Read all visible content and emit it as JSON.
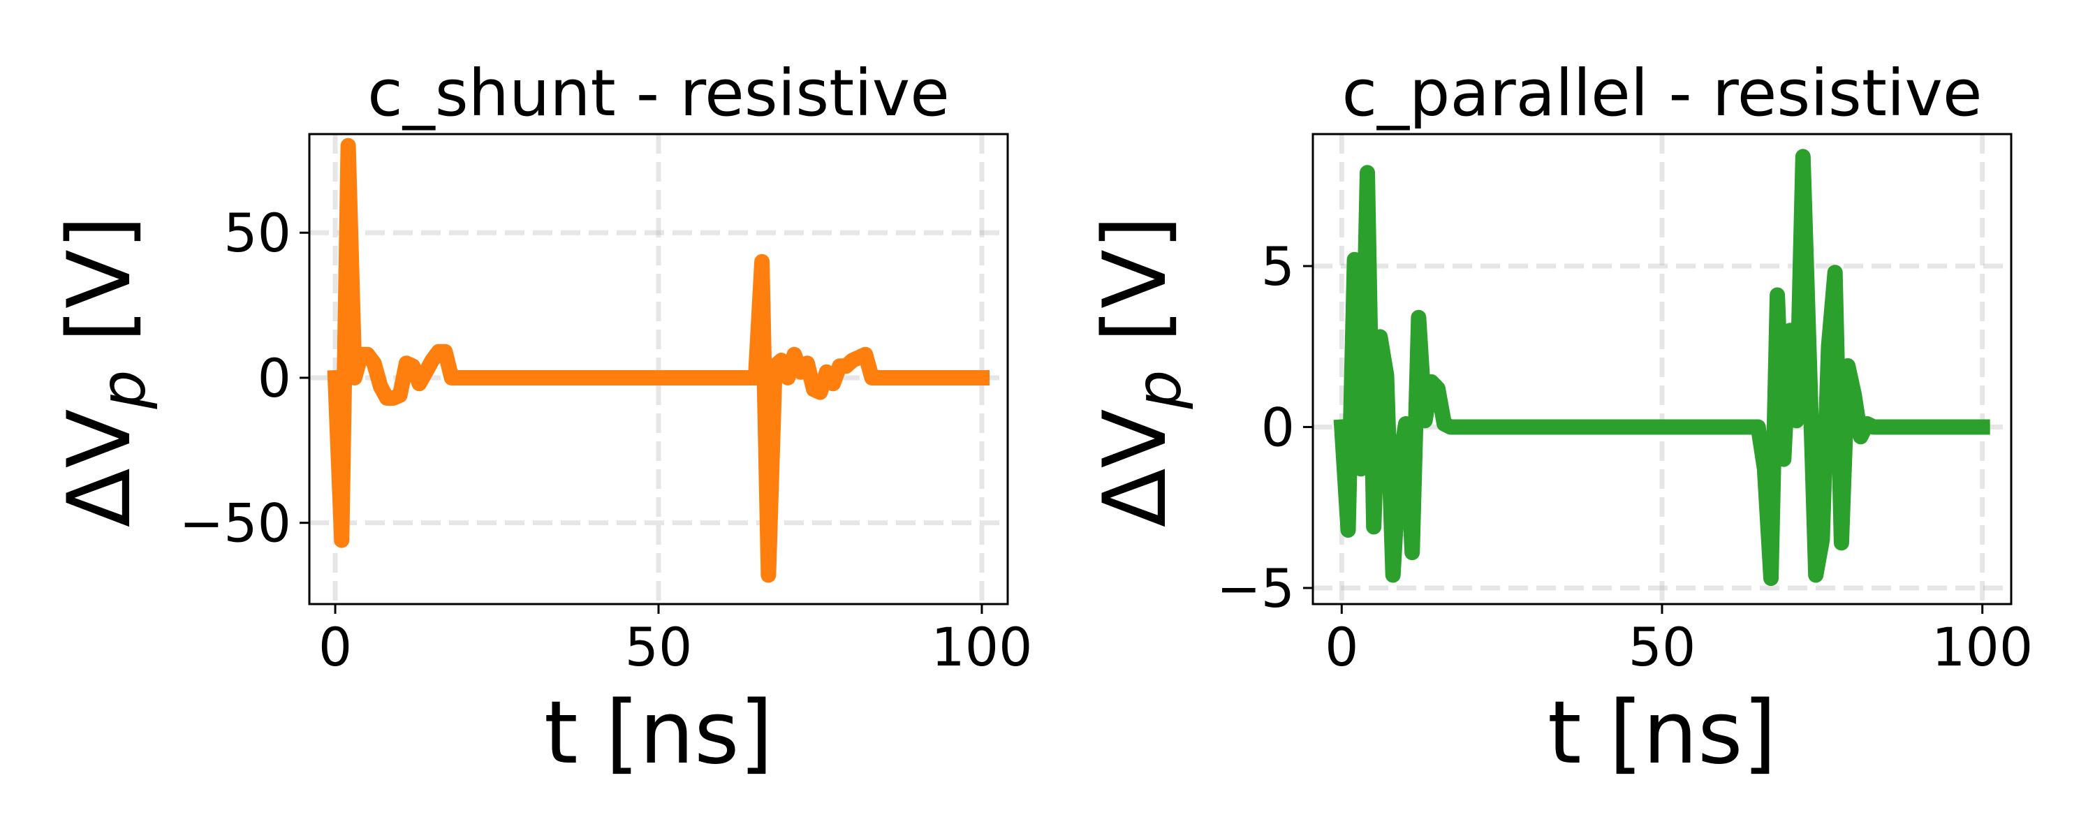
{
  "chart_data": [
    {
      "type": "line",
      "title": "c_shunt - resistive",
      "xlabel": "t [ns]",
      "ylabel": "ΔV_p [V]",
      "ylabel_parts": {
        "prefix": "ΔV",
        "subscript": "p",
        "suffix": " [V]"
      },
      "xlim": [
        -4,
        104
      ],
      "ylim": [
        -78,
        84
      ],
      "xticks": [
        0,
        50,
        100
      ],
      "xtick_labels": [
        "0",
        "50",
        "100"
      ],
      "yticks": [
        -50,
        0,
        50
      ],
      "ytick_labels": [
        "−50",
        "0",
        "50"
      ],
      "grid": true,
      "legend": "none",
      "series": [
        {
          "color": "#ff7f0e",
          "x": [
            0,
            1,
            2,
            3,
            4,
            5,
            6,
            7,
            8,
            9,
            10,
            11,
            12,
            13,
            14,
            15,
            16,
            17,
            18,
            30,
            40,
            50,
            60,
            65,
            66,
            67,
            68,
            69,
            70,
            71,
            72,
            73,
            74,
            75,
            76,
            77,
            78,
            79,
            80,
            81,
            82,
            83,
            90,
            100
          ],
          "y": [
            0,
            -56,
            80,
            0,
            8,
            8,
            5,
            -3,
            -7,
            -7,
            -6,
            5,
            4,
            -2,
            2,
            6,
            9,
            9,
            0,
            0,
            0,
            0,
            0,
            0,
            40,
            -68,
            4,
            6,
            0,
            8,
            2,
            5,
            -4,
            -5,
            2,
            -2,
            4,
            4,
            6,
            7,
            8,
            0,
            0,
            0
          ]
        }
      ]
    },
    {
      "type": "line",
      "title": "c_parallel - resistive",
      "xlabel": "t [ns]",
      "ylabel": "ΔV_p [V]",
      "ylabel_parts": {
        "prefix": "ΔV",
        "subscript": "p",
        "suffix": " [V]"
      },
      "xlim": [
        -4.5,
        104.5
      ],
      "ylim": [
        -5.5,
        9.1
      ],
      "xticks": [
        0,
        50,
        100
      ],
      "xtick_labels": [
        "0",
        "50",
        "100"
      ],
      "yticks": [
        -5,
        0,
        5
      ],
      "ytick_labels": [
        "−5",
        "0",
        "5"
      ],
      "grid": true,
      "legend": "none",
      "series": [
        {
          "color": "#2ca02c",
          "x": [
            0,
            1,
            2,
            3,
            4,
            5,
            6,
            7,
            8,
            9,
            10,
            11,
            12,
            13,
            14,
            15,
            16,
            17,
            18,
            30,
            40,
            50,
            60,
            65,
            66,
            67,
            68,
            69,
            70,
            71,
            72,
            73,
            74,
            75,
            76,
            77,
            78,
            79,
            80,
            81,
            82,
            83,
            90,
            100
          ],
          "y": [
            0,
            -3.2,
            5.2,
            -1.3,
            7.9,
            -3.1,
            2.8,
            1.6,
            -4.6,
            -1.1,
            0.1,
            -3.9,
            3.4,
            0.2,
            1.4,
            1.2,
            0.1,
            0,
            0,
            0,
            0,
            0,
            0,
            0,
            -1.3,
            -4.7,
            4.1,
            -1.0,
            3.0,
            0.2,
            8.4,
            2.0,
            -4.6,
            -3.5,
            2.5,
            4.8,
            -3.6,
            1.9,
            1.0,
            -0.3,
            0.1,
            0,
            0,
            0
          ]
        }
      ]
    }
  ]
}
